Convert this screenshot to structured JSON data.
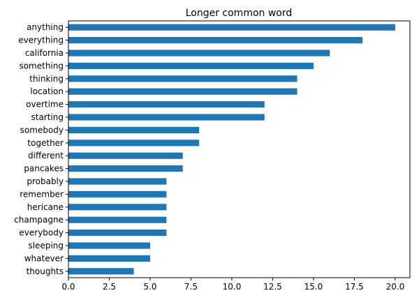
{
  "chart_data": {
    "type": "bar",
    "orientation": "horizontal",
    "title": "Longer common word",
    "xlabel": "",
    "ylabel": "",
    "categories": [
      "anything",
      "everything",
      "california",
      "something",
      "thinking",
      "location",
      "overtime",
      "starting",
      "somebody",
      "together",
      "different",
      "pancakes",
      "probably",
      "remember",
      "hericane",
      "champagne",
      "everybody",
      "sleeping",
      "whatever",
      "thoughts"
    ],
    "values": [
      20,
      18,
      16,
      15,
      14,
      14,
      12,
      12,
      8,
      8,
      7,
      7,
      6,
      6,
      6,
      6,
      6,
      5,
      5,
      4
    ],
    "xlim": [
      0,
      20.9
    ],
    "x_ticks": [
      0,
      2.5,
      5,
      7.5,
      10,
      12.5,
      15,
      17.5,
      20
    ],
    "x_tick_labels": [
      "0.0",
      "2.5",
      "5.0",
      "7.5",
      "10.0",
      "12.5",
      "15.0",
      "17.5",
      "20.0"
    ],
    "grid": false,
    "legend": "none",
    "bar_color": "#1f77b4"
  }
}
